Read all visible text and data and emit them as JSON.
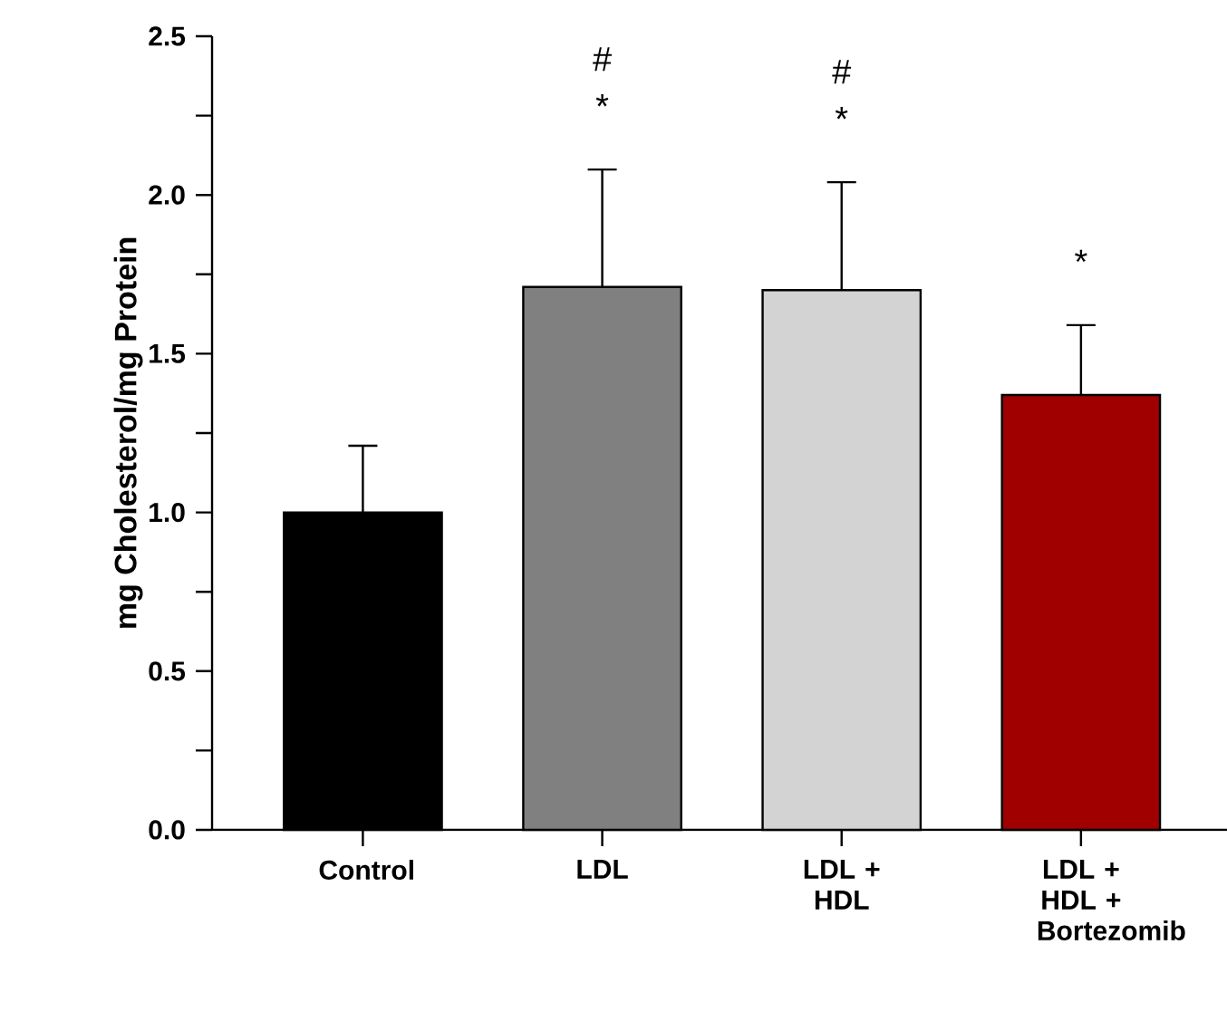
{
  "chart_data": {
    "type": "bar",
    "ylabel": "mg Cholesterol/mg Protein",
    "categories": [
      "Control",
      "LDL",
      "LDL + HDL",
      "LDL + HDL + Bortezomib"
    ],
    "values": [
      1.0,
      1.71,
      1.7,
      1.37
    ],
    "errors": [
      0.21,
      0.37,
      0.34,
      0.22
    ],
    "colors": [
      "#000000",
      "#808080",
      "#d3d3d3",
      "#a00000"
    ],
    "ylim": [
      0,
      2.5
    ],
    "yticks": [
      {
        "value": 0,
        "label": "0.0"
      },
      0.5,
      {
        "value": 1,
        "label": "1.0"
      },
      1.5,
      {
        "value": 2,
        "label": "2.0"
      },
      2.5
    ],
    "annotations": [
      "#",
      "*",
      "#",
      "*",
      "*"
    ]
  }
}
